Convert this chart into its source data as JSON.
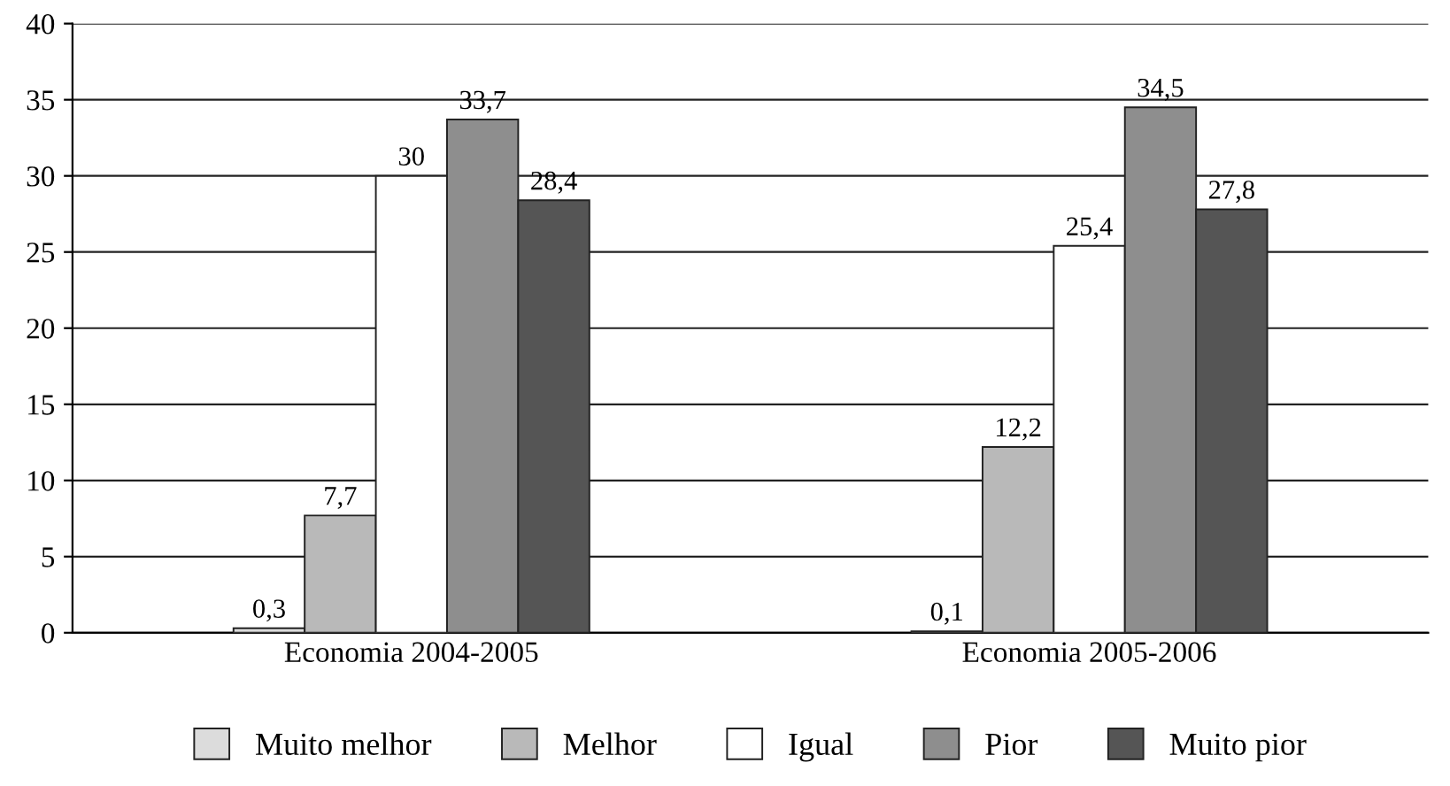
{
  "chart_data": {
    "type": "bar",
    "categories": [
      "Economia 2004-2005",
      "Economia 2005-2006"
    ],
    "series": [
      {
        "name": "Muito melhor",
        "color": "#dcdcdc",
        "values": [
          0.3,
          0.1
        ],
        "value_labels": [
          "0,3",
          "0,1"
        ]
      },
      {
        "name": "Melhor",
        "color": "#b9b9b9",
        "values": [
          7.7,
          12.2
        ],
        "value_labels": [
          "7,7",
          "12,2"
        ]
      },
      {
        "name": "Igual",
        "color": "#ffffff",
        "values": [
          30,
          25.4
        ],
        "value_labels": [
          "30",
          "25,4"
        ]
      },
      {
        "name": "Pior",
        "color": "#8e8e8e",
        "values": [
          33.7,
          34.5
        ],
        "value_labels": [
          "33,7",
          "34,5"
        ]
      },
      {
        "name": "Muito pior",
        "color": "#555555",
        "values": [
          28.4,
          27.8
        ],
        "value_labels": [
          "28,4",
          "27,8"
        ]
      }
    ],
    "ylim": [
      0,
      40
    ],
    "yticks": [
      0,
      5,
      10,
      15,
      20,
      25,
      30,
      35,
      40
    ],
    "grid": "y",
    "legend": "bottom"
  }
}
